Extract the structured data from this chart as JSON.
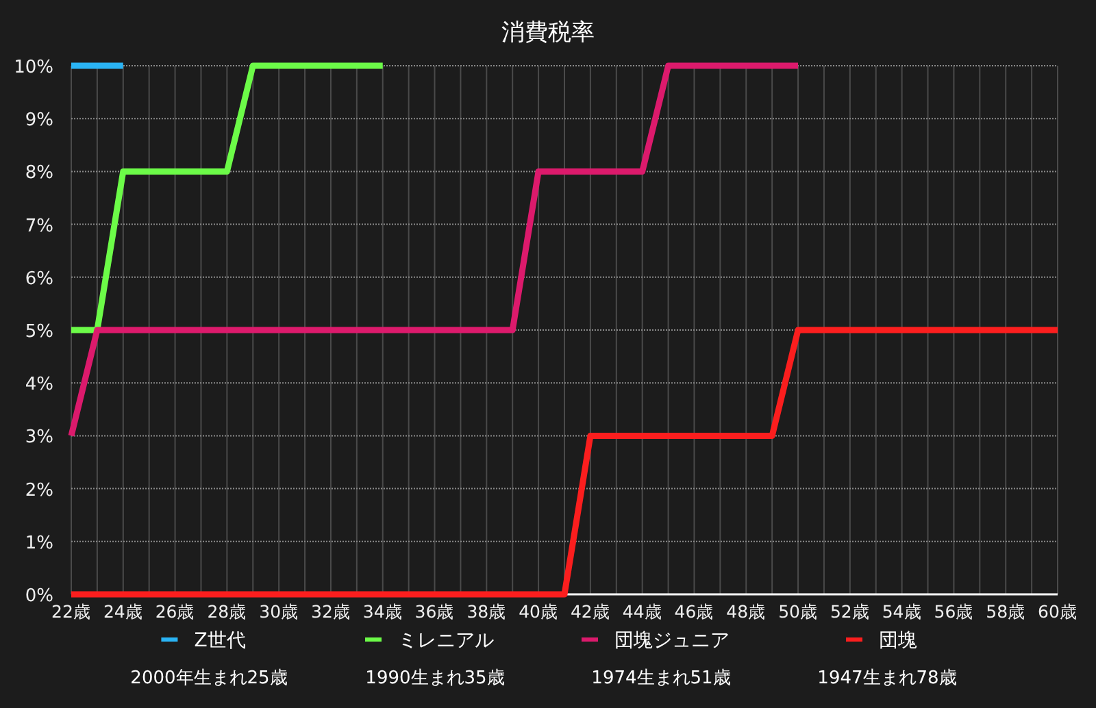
{
  "chart_data": {
    "type": "line",
    "title": "消費税率",
    "series": [
      {
        "name": "Z世代",
        "color": "#2ab4f5",
        "x": [
          22,
          24
        ],
        "values": [
          10,
          10
        ]
      },
      {
        "name": "ミレニアル",
        "color": "#6cfb48",
        "x": [
          22,
          23,
          24,
          28,
          29,
          34
        ],
        "values": [
          5,
          5,
          8,
          8,
          10,
          10
        ]
      },
      {
        "name": "団塊ジュニア",
        "color": "#dc1a6c",
        "x": [
          22,
          23,
          39,
          40,
          44,
          45,
          50
        ],
        "values": [
          3,
          5,
          5,
          8,
          8,
          10,
          10
        ]
      },
      {
        "name": "団塊",
        "color": "#fb1e1e",
        "x": [
          22,
          41,
          42,
          49,
          50,
          60
        ],
        "values": [
          0,
          0,
          3,
          3,
          5,
          5
        ]
      }
    ],
    "annotations": [
      "2000年生まれ25歳",
      "1990生まれ35歳",
      "1974生まれ51歳",
      "1947生まれ78歳"
    ],
    "xlim": [
      22,
      60
    ],
    "xticks": [
      {
        "value": 22,
        "label": "22歳"
      },
      {
        "value": 23,
        "label": null
      },
      {
        "value": 24,
        "label": "24歳"
      },
      {
        "value": 25,
        "label": null
      },
      {
        "value": 26,
        "label": "26歳"
      },
      {
        "value": 27,
        "label": null
      },
      {
        "value": 28,
        "label": "28歳"
      },
      {
        "value": 29,
        "label": null
      },
      {
        "value": 30,
        "label": "30歳"
      },
      {
        "value": 31,
        "label": null
      },
      {
        "value": 32,
        "label": "32歳"
      },
      {
        "value": 33,
        "label": null
      },
      {
        "value": 34,
        "label": "34歳"
      },
      {
        "value": 35,
        "label": null
      },
      {
        "value": 36,
        "label": "36歳"
      },
      {
        "value": 37,
        "label": null
      },
      {
        "value": 38,
        "label": "38歳"
      },
      {
        "value": 39,
        "label": null
      },
      {
        "value": 40,
        "label": "40歳"
      },
      {
        "value": 41,
        "label": null
      },
      {
        "value": 42,
        "label": "42歳"
      },
      {
        "value": 43,
        "label": null
      },
      {
        "value": 44,
        "label": "44歳"
      },
      {
        "value": 45,
        "label": null
      },
      {
        "value": 46,
        "label": "46歳"
      },
      {
        "value": 47,
        "label": null
      },
      {
        "value": 48,
        "label": "48歳"
      },
      {
        "value": 49,
        "label": null
      },
      {
        "value": 50,
        "label": "50歳"
      },
      {
        "value": 51,
        "label": null
      },
      {
        "value": 52,
        "label": "52歳"
      },
      {
        "value": 53,
        "label": null
      },
      {
        "value": 54,
        "label": "54歳"
      },
      {
        "value": 55,
        "label": null
      },
      {
        "value": 56,
        "label": "56歳"
      },
      {
        "value": 57,
        "label": null
      },
      {
        "value": 58,
        "label": "58歳"
      },
      {
        "value": 59,
        "label": null
      },
      {
        "value": 60,
        "label": "60歳"
      }
    ],
    "ylim": [
      0,
      10
    ],
    "yticks": [
      {
        "value": 0,
        "label": "0%"
      },
      {
        "value": 1,
        "label": "1%"
      },
      {
        "value": 2,
        "label": "2%"
      },
      {
        "value": 3,
        "label": "3%"
      },
      {
        "value": 4,
        "label": "4%"
      },
      {
        "value": 5,
        "label": "5%"
      },
      {
        "value": 6,
        "label": "6%"
      },
      {
        "value": 7,
        "label": "7%"
      },
      {
        "value": 8,
        "label": "8%"
      },
      {
        "value": 9,
        "label": "9%"
      },
      {
        "value": 10,
        "label": "10%"
      }
    ],
    "grid": true,
    "legend": "bottom",
    "marker": "none",
    "line_style": "solid"
  }
}
